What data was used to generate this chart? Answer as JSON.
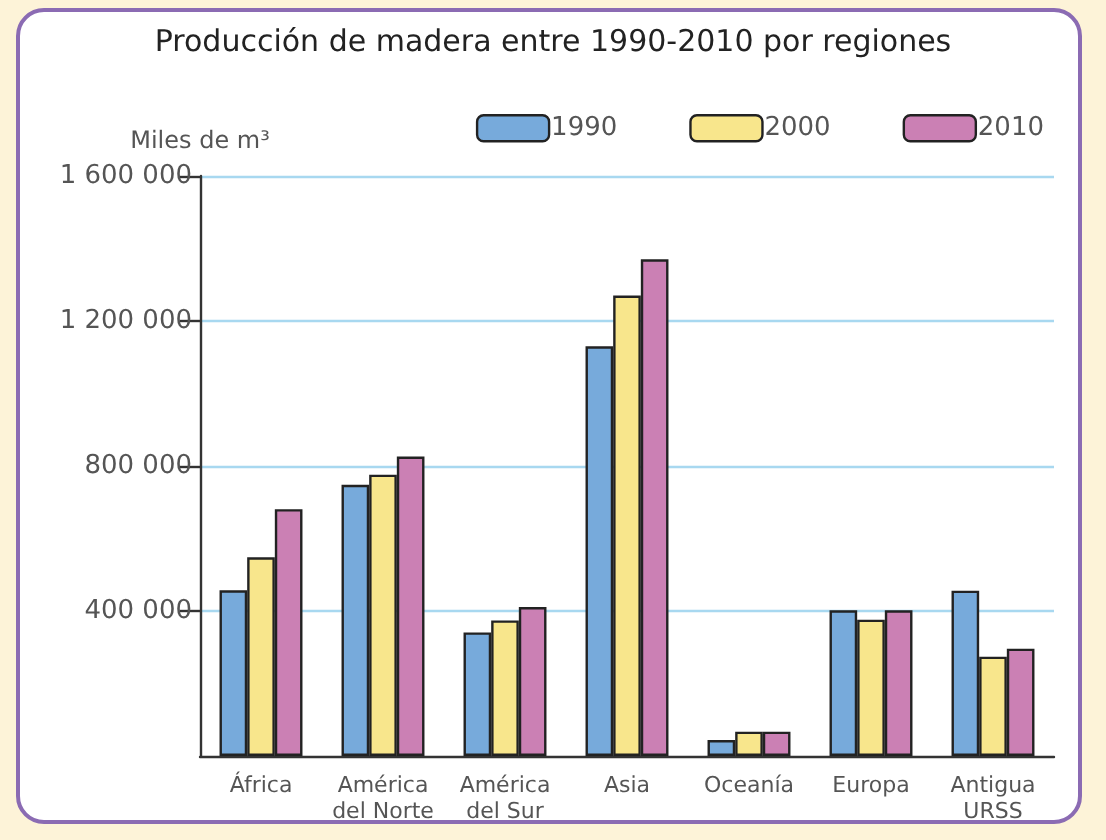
{
  "chart_data": {
    "type": "bar",
    "title": "Producción de madera entre 1990-2010 por regiones",
    "ylabel": "Miles de m³",
    "categories": [
      "África",
      "América\ndel Norte",
      "América\ndel Sur",
      "Asia",
      "Oceanía",
      "Europa",
      "Antigua\nURSS"
    ],
    "series": [
      {
        "name": "1990",
        "color": "#77aadb",
        "values": [
          457000,
          748000,
          341000,
          1130000,
          44000,
          402000,
          456000
        ]
      },
      {
        "name": "2000",
        "color": "#f8e68c",
        "values": [
          548000,
          776000,
          374000,
          1270000,
          67000,
          376000,
          274000
        ]
      },
      {
        "name": "2010",
        "color": "#cb80b4",
        "values": [
          681000,
          826000,
          411000,
          1370000,
          67000,
          402000,
          296000
        ]
      }
    ],
    "ylim": [
      0,
      1600000
    ],
    "yticks": [
      {
        "value": 400000,
        "label": "400 000"
      },
      {
        "value": 800000,
        "label": "800 000"
      },
      {
        "value": 1200000,
        "label": "1 200 000"
      },
      {
        "value": 1600000,
        "label": "1 600 000"
      }
    ],
    "grid": "y",
    "legend": "top right"
  }
}
